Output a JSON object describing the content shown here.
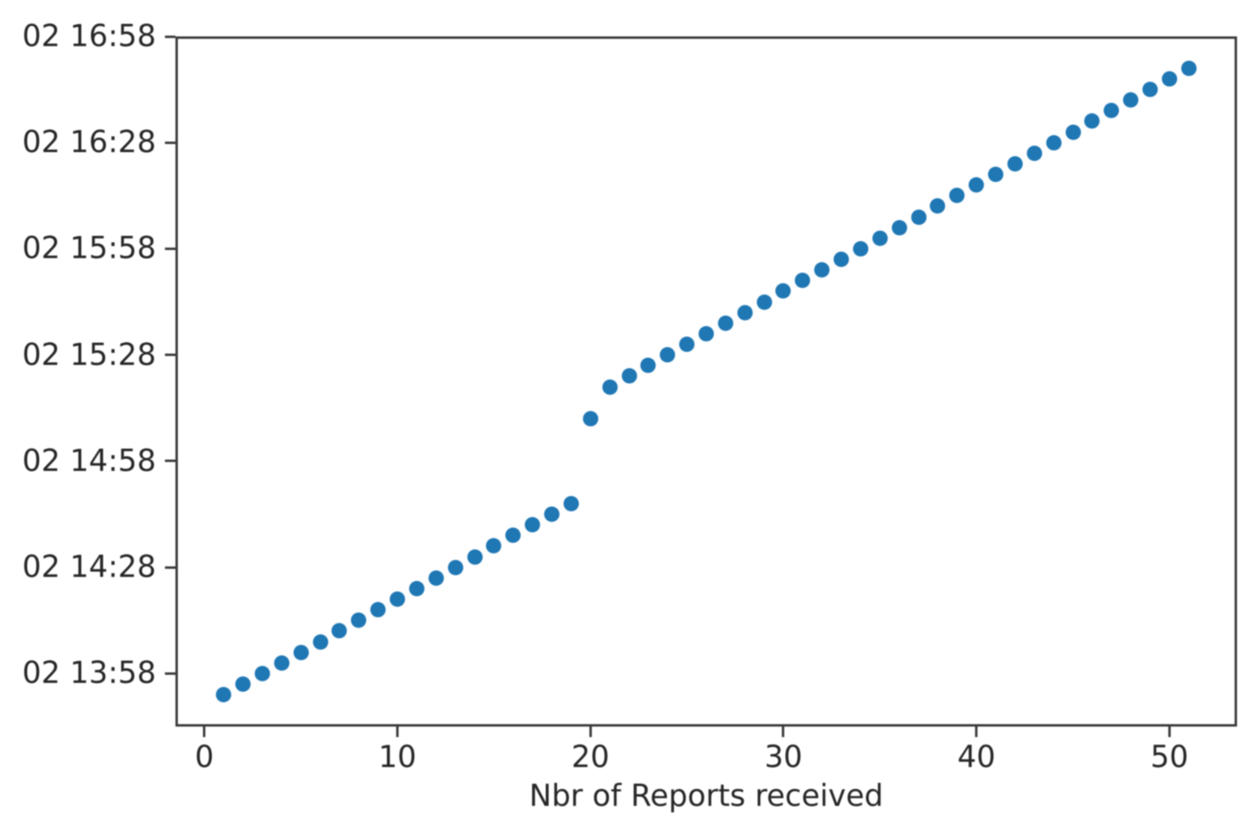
{
  "chart_data": {
    "type": "scatter",
    "title": "",
    "xlabel": "Nbr of Reports received",
    "ylabel": "",
    "x_ticks": [
      0,
      10,
      20,
      30,
      40,
      50
    ],
    "y_tick_labels": [
      "02 16:58",
      "02 16:28",
      "02 15:58",
      "02 15:28",
      "02 14:58",
      "02 14:28",
      "02 13:58"
    ],
    "xlim": [
      -1.5,
      53.5
    ],
    "ylim_times": [
      "02 13:43",
      "02 16:58"
    ],
    "grid": false,
    "legend_position": "none",
    "marker_color": "#1f77b4",
    "axis_color": "#3a3a3a",
    "text_color": "#262626",
    "background_color": "#ffffff",
    "points": [
      {
        "x": 1,
        "time": "02 13:52"
      },
      {
        "x": 2,
        "time": "02 13:55"
      },
      {
        "x": 3,
        "time": "02 13:58"
      },
      {
        "x": 4,
        "time": "02 14:01"
      },
      {
        "x": 5,
        "time": "02 14:04"
      },
      {
        "x": 6,
        "time": "02 14:07"
      },
      {
        "x": 7,
        "time": "02 14:10"
      },
      {
        "x": 8,
        "time": "02 14:13"
      },
      {
        "x": 9,
        "time": "02 14:16"
      },
      {
        "x": 10,
        "time": "02 14:19"
      },
      {
        "x": 11,
        "time": "02 14:22"
      },
      {
        "x": 12,
        "time": "02 14:25"
      },
      {
        "x": 13,
        "time": "02 14:28"
      },
      {
        "x": 14,
        "time": "02 14:31"
      },
      {
        "x": 15,
        "time": "02 14:34"
      },
      {
        "x": 16,
        "time": "02 14:37"
      },
      {
        "x": 17,
        "time": "02 14:40"
      },
      {
        "x": 18,
        "time": "02 14:43"
      },
      {
        "x": 19,
        "time": "02 14:46"
      },
      {
        "x": 20,
        "time": "02 15:10"
      },
      {
        "x": 21,
        "time": "02 15:19"
      },
      {
        "x": 22,
        "time": "02 15:22"
      },
      {
        "x": 23,
        "time": "02 15:25"
      },
      {
        "x": 24,
        "time": "02 15:28"
      },
      {
        "x": 25,
        "time": "02 15:31"
      },
      {
        "x": 26,
        "time": "02 15:34"
      },
      {
        "x": 27,
        "time": "02 15:37"
      },
      {
        "x": 28,
        "time": "02 15:40"
      },
      {
        "x": 29,
        "time": "02 15:43"
      },
      {
        "x": 30,
        "time": "02 15:46"
      },
      {
        "x": 31,
        "time": "02 15:49"
      },
      {
        "x": 32,
        "time": "02 15:52"
      },
      {
        "x": 33,
        "time": "02 15:55"
      },
      {
        "x": 34,
        "time": "02 15:58"
      },
      {
        "x": 35,
        "time": "02 16:01"
      },
      {
        "x": 36,
        "time": "02 16:04"
      },
      {
        "x": 37,
        "time": "02 16:07"
      },
      {
        "x": 38,
        "time": "02 16:10"
      },
      {
        "x": 39,
        "time": "02 16:13"
      },
      {
        "x": 40,
        "time": "02 16:16"
      },
      {
        "x": 41,
        "time": "02 16:19"
      },
      {
        "x": 42,
        "time": "02 16:22"
      },
      {
        "x": 43,
        "time": "02 16:25"
      },
      {
        "x": 44,
        "time": "02 16:28"
      },
      {
        "x": 45,
        "time": "02 16:31"
      },
      {
        "x": 46,
        "time": "02 16:34"
      },
      {
        "x": 47,
        "time": "02 16:37"
      },
      {
        "x": 48,
        "time": "02 16:40"
      },
      {
        "x": 49,
        "time": "02 16:43"
      },
      {
        "x": 50,
        "time": "02 16:46"
      },
      {
        "x": 51,
        "time": "02 16:49"
      }
    ]
  }
}
